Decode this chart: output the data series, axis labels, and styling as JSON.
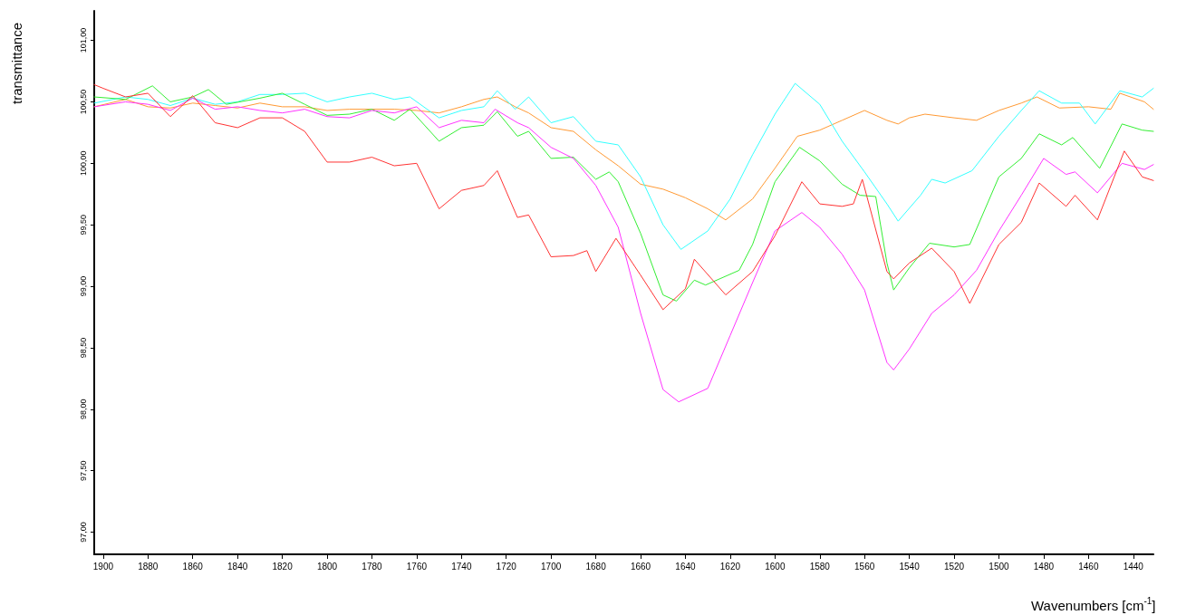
{
  "chart_data": {
    "type": "line",
    "xlabel": "Wavenumbers [cm$^{-1}$]",
    "ylabel": "transmittance",
    "xlim": [
      1904,
      1431
    ],
    "ylim": [
      96.82,
      101.24
    ],
    "xticks": [
      1900,
      1880,
      1860,
      1840,
      1820,
      1800,
      1780,
      1760,
      1740,
      1720,
      1700,
      1680,
      1660,
      1640,
      1620,
      1600,
      1580,
      1560,
      1540,
      1520,
      1500,
      1480,
      1460,
      1440
    ],
    "yticks": [
      {
        "value": 97,
        "label": "97,00"
      },
      {
        "value": 97.5,
        "label": "97,50"
      },
      {
        "value": 98,
        "label": "98,00"
      },
      {
        "value": 98.5,
        "label": "98,50"
      },
      {
        "value": 99,
        "label": "99,00"
      },
      {
        "value": 99.5,
        "label": "99,50"
      },
      {
        "value": 100,
        "label": "100,00"
      },
      {
        "value": 100.5,
        "label": "100,50"
      },
      {
        "value": 101,
        "label": "101,00"
      }
    ],
    "grid": false,
    "marker": "none",
    "line_style": "solid",
    "series": [
      {
        "color": "#ff9933",
        "x": [
          1904,
          1890,
          1880,
          1870,
          1860,
          1850,
          1840,
          1830,
          1820,
          1810,
          1800,
          1790,
          1780,
          1770,
          1760,
          1750,
          1740,
          1730,
          1724,
          1716,
          1710,
          1700,
          1690,
          1680,
          1670,
          1660,
          1650,
          1640,
          1630,
          1622,
          1610,
          1600,
          1590,
          1580,
          1570,
          1560,
          1550,
          1545,
          1540,
          1533,
          1520,
          1510,
          1500,
          1490,
          1483,
          1473,
          1460,
          1450,
          1446,
          1435,
          1431
        ],
        "values": [
          100.46,
          100.52,
          100.46,
          100.45,
          100.49,
          100.47,
          100.45,
          100.49,
          100.46,
          100.46,
          100.43,
          100.44,
          100.44,
          100.44,
          100.43,
          100.41,
          100.46,
          100.52,
          100.54,
          100.46,
          100.41,
          100.29,
          100.26,
          100.11,
          99.98,
          99.83,
          99.79,
          99.72,
          99.63,
          99.54,
          99.71,
          99.96,
          100.22,
          100.27,
          100.35,
          100.43,
          100.35,
          100.32,
          100.37,
          100.4,
          100.37,
          100.35,
          100.43,
          100.49,
          100.54,
          100.45,
          100.46,
          100.44,
          100.57,
          100.5,
          100.44
        ]
      },
      {
        "color": "#33ffff",
        "x": [
          1904,
          1890,
          1880,
          1870,
          1860,
          1850,
          1840,
          1830,
          1820,
          1810,
          1800,
          1790,
          1780,
          1770,
          1763,
          1750,
          1740,
          1730,
          1724,
          1716,
          1710,
          1700,
          1690,
          1680,
          1670,
          1660,
          1650,
          1642,
          1630,
          1620,
          1610,
          1600,
          1591,
          1580,
          1570,
          1560,
          1550,
          1545,
          1535,
          1530,
          1524,
          1512,
          1500,
          1490,
          1482,
          1472,
          1464,
          1457,
          1446,
          1436,
          1431
        ],
        "values": [
          100.49,
          100.54,
          100.52,
          100.47,
          100.53,
          100.48,
          100.5,
          100.56,
          100.56,
          100.57,
          100.5,
          100.54,
          100.57,
          100.52,
          100.54,
          100.37,
          100.43,
          100.46,
          100.59,
          100.44,
          100.54,
          100.33,
          100.38,
          100.18,
          100.15,
          99.89,
          99.5,
          99.3,
          99.45,
          99.71,
          100.07,
          100.4,
          100.65,
          100.48,
          100.18,
          99.93,
          99.67,
          99.53,
          99.74,
          99.87,
          99.84,
          99.94,
          100.22,
          100.43,
          100.59,
          100.49,
          100.49,
          100.32,
          100.59,
          100.54,
          100.61
        ]
      },
      {
        "color": "#33ee33",
        "x": [
          1904,
          1890,
          1878,
          1870,
          1860,
          1853,
          1845,
          1830,
          1820,
          1810,
          1800,
          1790,
          1780,
          1770,
          1763,
          1750,
          1740,
          1730,
          1724,
          1715,
          1710,
          1700,
          1690,
          1680,
          1674,
          1670,
          1660,
          1650,
          1644,
          1636,
          1631,
          1616,
          1610,
          1600,
          1589,
          1580,
          1570,
          1562,
          1555,
          1550,
          1547,
          1540,
          1531,
          1520,
          1513,
          1500,
          1490,
          1482,
          1472,
          1467,
          1455,
          1445,
          1436,
          1431
        ],
        "values": [
          100.54,
          100.52,
          100.63,
          100.5,
          100.54,
          100.6,
          100.48,
          100.53,
          100.57,
          100.48,
          100.39,
          100.4,
          100.44,
          100.35,
          100.44,
          100.18,
          100.29,
          100.31,
          100.42,
          100.22,
          100.26,
          100.04,
          100.05,
          99.87,
          99.93,
          99.85,
          99.43,
          98.93,
          98.88,
          99.05,
          99.01,
          99.13,
          99.34,
          99.85,
          100.13,
          100.02,
          99.83,
          99.74,
          99.73,
          99.19,
          98.97,
          99.15,
          99.35,
          99.32,
          99.34,
          99.89,
          100.04,
          100.24,
          100.15,
          100.21,
          99.96,
          100.32,
          100.27,
          100.26
        ]
      },
      {
        "color": "#ff33ff",
        "x": [
          1904,
          1890,
          1880,
          1870,
          1860,
          1850,
          1840,
          1830,
          1820,
          1810,
          1800,
          1790,
          1780,
          1770,
          1760,
          1750,
          1740,
          1730,
          1725,
          1715,
          1710,
          1700,
          1690,
          1680,
          1670,
          1660,
          1650,
          1643,
          1630,
          1620,
          1610,
          1600,
          1588,
          1580,
          1570,
          1560,
          1550,
          1547,
          1540,
          1530,
          1520,
          1510,
          1500,
          1490,
          1480,
          1470,
          1466,
          1456,
          1445,
          1435,
          1431
        ],
        "values": [
          100.46,
          100.5,
          100.48,
          100.43,
          100.53,
          100.44,
          100.46,
          100.43,
          100.41,
          100.44,
          100.38,
          100.37,
          100.43,
          100.41,
          100.46,
          100.29,
          100.35,
          100.33,
          100.44,
          100.33,
          100.29,
          100.13,
          100.04,
          99.82,
          99.48,
          98.78,
          98.16,
          98.06,
          98.17,
          98.6,
          99.03,
          99.45,
          99.6,
          99.48,
          99.26,
          98.97,
          98.38,
          98.32,
          98.49,
          98.78,
          98.93,
          99.13,
          99.45,
          99.74,
          100.04,
          99.91,
          99.93,
          99.76,
          100,
          99.95,
          99.99
        ]
      },
      {
        "color": "#ff3333",
        "x": [
          1904,
          1900,
          1890,
          1880,
          1870,
          1860,
          1850,
          1840,
          1830,
          1820,
          1810,
          1800,
          1790,
          1780,
          1770,
          1760,
          1750,
          1740,
          1730,
          1724,
          1715,
          1710,
          1700,
          1690,
          1684,
          1680,
          1671,
          1660,
          1650,
          1640,
          1636,
          1622,
          1610,
          1600,
          1588,
          1580,
          1570,
          1565,
          1561,
          1550,
          1547,
          1540,
          1530,
          1520,
          1513,
          1500,
          1490,
          1482,
          1470,
          1466,
          1456,
          1444,
          1436,
          1431
        ],
        "values": [
          100.64,
          100.61,
          100.54,
          100.57,
          100.38,
          100.55,
          100.33,
          100.29,
          100.37,
          100.37,
          100.26,
          100.01,
          100.01,
          100.05,
          99.98,
          100,
          99.63,
          99.78,
          99.82,
          99.94,
          99.56,
          99.58,
          99.24,
          99.25,
          99.29,
          99.12,
          99.39,
          99.09,
          98.81,
          98.98,
          99.22,
          98.93,
          99.12,
          99.41,
          99.85,
          99.67,
          99.65,
          99.67,
          99.87,
          99.12,
          99.06,
          99.19,
          99.31,
          99.12,
          98.86,
          99.34,
          99.52,
          99.84,
          99.65,
          99.74,
          99.54,
          100.1,
          99.89,
          99.86
        ]
      }
    ]
  }
}
